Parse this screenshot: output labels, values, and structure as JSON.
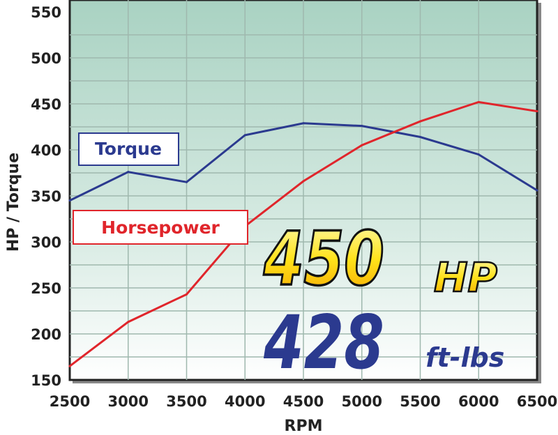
{
  "chart_data": {
    "type": "line",
    "xlabel": "RPM",
    "ylabel": "HP / Torque",
    "xlim": [
      2500,
      6500
    ],
    "ylim": [
      150,
      550
    ],
    "x": [
      2500,
      3000,
      3500,
      4000,
      4500,
      5000,
      5500,
      6000,
      6500
    ],
    "xticks": [
      "2500",
      "3000",
      "3500",
      "4000",
      "4500",
      "5000",
      "5500",
      "6000",
      "6500"
    ],
    "yticks": [
      "150",
      "200",
      "250",
      "300",
      "350",
      "400",
      "450",
      "500",
      "550"
    ],
    "grid": true,
    "series": [
      {
        "name": "Torque",
        "color": "#2b3a8f",
        "values": [
          345,
          376,
          365,
          416,
          429,
          426,
          414,
          395,
          356
        ]
      },
      {
        "name": "Horsepower",
        "color": "#e0252b",
        "values": [
          165,
          213,
          243,
          317,
          366,
          405,
          431,
          452,
          442
        ]
      }
    ],
    "annotations": {
      "hp_value": "450",
      "hp_unit": "HP",
      "torque_value": "428",
      "torque_unit": "ft-lbs"
    }
  }
}
